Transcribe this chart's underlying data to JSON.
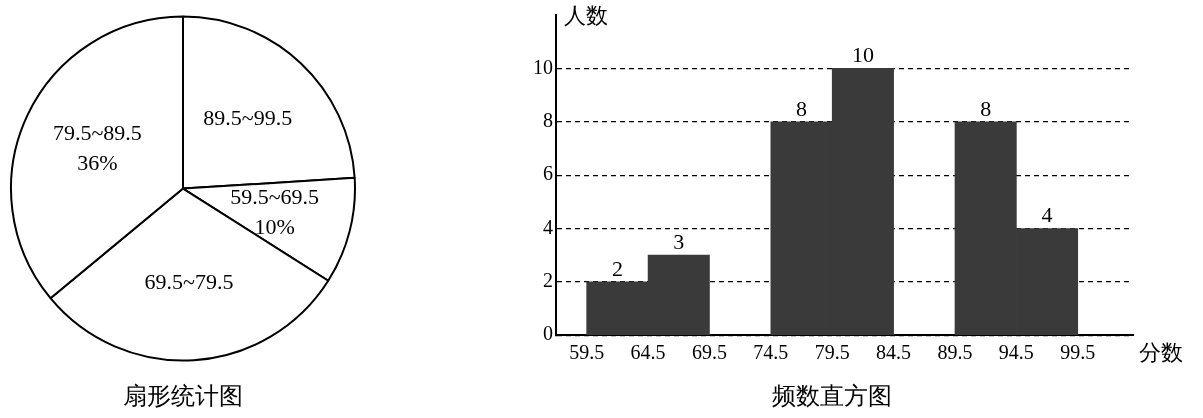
{
  "chart_data": [
    {
      "type": "pie",
      "title": "扇形统计图",
      "categories": [
        "89.5~99.5",
        "59.5~69.5",
        "69.5~79.5",
        "79.5~89.5"
      ],
      "values": [
        24,
        10,
        30,
        36
      ],
      "colors": [
        "#ffffff",
        "#ffffff",
        "#ffffff",
        "#ffffff"
      ],
      "value_labels": [
        null,
        "10%",
        null,
        "36%"
      ]
    },
    {
      "type": "histogram",
      "title": "频数直方图",
      "xlabel": "分数",
      "ylabel": "人数",
      "bins": [
        59.5,
        64.5,
        69.5,
        74.5,
        79.5,
        84.5,
        89.5,
        94.5,
        99.5
      ],
      "values": [
        2,
        3,
        null,
        8,
        10,
        null,
        8,
        4
      ],
      "color": "#3a3a3a",
      "data_labels": true,
      "xlim": [
        57,
        104
      ],
      "xticks": [
        59.5,
        64.5,
        69.5,
        74.5,
        79.5,
        84.5,
        89.5,
        94.5,
        99.5
      ],
      "ylim": [
        0,
        12
      ],
      "yticks": [
        0,
        2,
        4,
        6,
        8,
        10
      ],
      "grid": "y"
    }
  ]
}
